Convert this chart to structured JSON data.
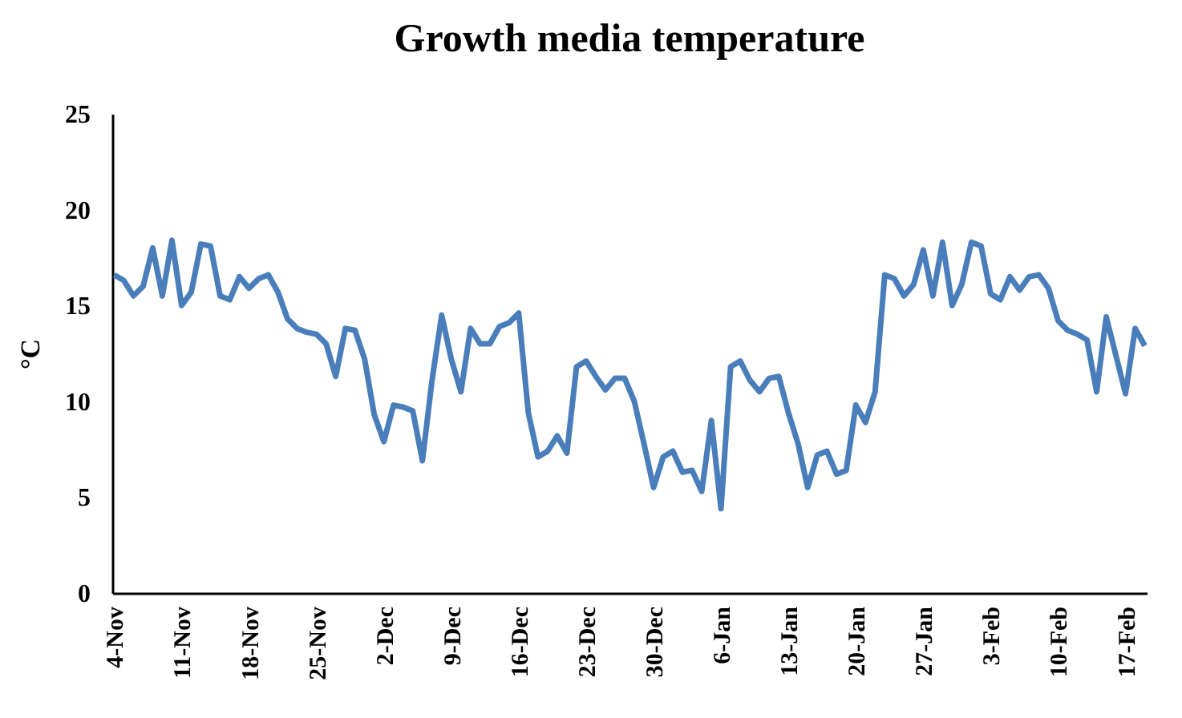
{
  "chart_data": {
    "type": "line",
    "title": "Growth media temperature",
    "ylabel": "°C",
    "categories": [
      "4-Nov",
      null,
      null,
      null,
      null,
      null,
      null,
      "11-Nov",
      null,
      null,
      null,
      null,
      null,
      null,
      "18-Nov",
      null,
      null,
      null,
      null,
      null,
      null,
      "25-Nov",
      null,
      null,
      null,
      null,
      null,
      null,
      "2-Dec",
      null,
      null,
      null,
      null,
      null,
      null,
      "9-Dec",
      null,
      null,
      null,
      null,
      null,
      null,
      "16-Dec",
      null,
      null,
      null,
      null,
      null,
      null,
      "23-Dec",
      null,
      null,
      null,
      null,
      null,
      null,
      "30-Dec",
      null,
      null,
      null,
      null,
      null,
      null,
      "6-Jan",
      null,
      null,
      null,
      null,
      null,
      null,
      "13-Jan",
      null,
      null,
      null,
      null,
      null,
      null,
      "20-Jan",
      null,
      null,
      null,
      null,
      null,
      null,
      "27-Jan",
      null,
      null,
      null,
      null,
      null,
      null,
      "3-Feb",
      null,
      null,
      null,
      null,
      null,
      null,
      "10-Feb",
      null,
      null,
      null,
      null,
      null,
      null,
      "17-Feb",
      null,
      null
    ],
    "series": [
      {
        "color": "#4a7ebb",
        "values": [
          16.6,
          16.3,
          15.5,
          16.0,
          18.0,
          15.5,
          18.4,
          15.0,
          15.7,
          18.2,
          18.1,
          15.5,
          15.3,
          16.5,
          15.9,
          16.4,
          16.6,
          15.7,
          14.3,
          13.8,
          13.6,
          13.5,
          13.0,
          11.3,
          13.8,
          13.7,
          12.2,
          9.3,
          7.9,
          9.8,
          9.7,
          9.5,
          6.9,
          11.1,
          14.5,
          12.2,
          10.5,
          13.8,
          13.0,
          13.0,
          13.9,
          14.1,
          14.6,
          9.4,
          7.1,
          7.4,
          8.2,
          7.3,
          11.8,
          12.1,
          11.3,
          10.6,
          11.2,
          11.2,
          10.0,
          7.8,
          5.5,
          7.1,
          7.4,
          6.3,
          6.4,
          5.3,
          9.0,
          4.4,
          11.8,
          12.1,
          11.1,
          10.5,
          11.2,
          11.3,
          9.4,
          7.8,
          5.5,
          7.2,
          7.4,
          6.2,
          6.4,
          9.8,
          8.9,
          10.5,
          16.6,
          16.4,
          15.5,
          16.1,
          17.9,
          15.5,
          18.3,
          15.0,
          16.1,
          18.3,
          18.1,
          15.6,
          15.3,
          16.5,
          15.8,
          16.5,
          16.6,
          15.9,
          14.2,
          13.7,
          13.5,
          13.2,
          10.5,
          14.4,
          12.4,
          10.4,
          13.8,
          12.9
        ]
      }
    ],
    "ylim": [
      0,
      25
    ],
    "yticks": [
      0,
      5,
      10,
      15,
      20,
      25
    ],
    "grid": false,
    "marker": "none",
    "line_style": "solid"
  }
}
